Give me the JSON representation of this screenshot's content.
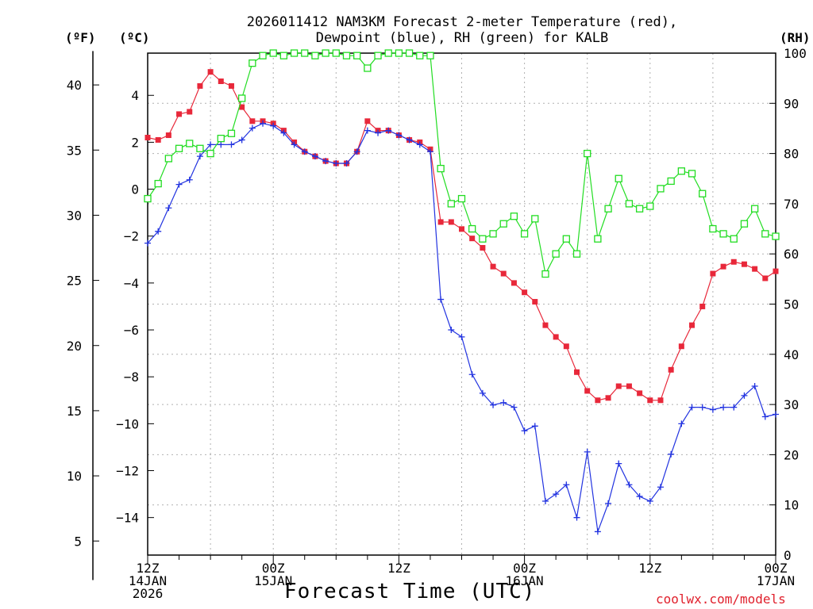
{
  "chart_data": {
    "type": "line",
    "title_line1": "2026011412 NAM3KM Forecast 2-meter Temperature (red),",
    "title_line2": "Dewpoint (blue), RH (green) for KALB",
    "left_outer_unit": "(ºF)",
    "left_inner_unit": "(ºC)",
    "right_unit": "(RH)",
    "xlabel": "Forecast Time (UTC)",
    "credit": "coolwx.com/models",
    "x_hours_range": [
      0,
      60
    ],
    "celsius_range": [
      -15.6,
      5.8
    ],
    "rh_range": [
      0,
      100
    ],
    "fahrenheit_ticks": [
      5,
      10,
      15,
      20,
      25,
      30,
      35,
      40
    ],
    "celsius_ticks": [
      -14,
      -12,
      -10,
      -8,
      -6,
      -4,
      -2,
      0,
      2,
      4
    ],
    "rh_ticks": [
      0,
      10,
      20,
      30,
      40,
      50,
      60,
      70,
      80,
      90,
      100
    ],
    "x_ticks": [
      {
        "hour": 0,
        "lines": [
          "12Z",
          "14JAN",
          "2026"
        ]
      },
      {
        "hour": 12,
        "lines": [
          "00Z",
          "15JAN"
        ]
      },
      {
        "hour": 24,
        "lines": [
          "12Z"
        ]
      },
      {
        "hour": 36,
        "lines": [
          "00Z",
          "16JAN"
        ]
      },
      {
        "hour": 48,
        "lines": [
          "12Z"
        ]
      },
      {
        "hour": 60,
        "lines": [
          "00Z",
          "17JAN"
        ]
      }
    ],
    "series": [
      {
        "name": "Temperature",
        "units": "C",
        "color": "#e8283a",
        "marker": "filled-square",
        "values": [
          [
            0,
            2.2
          ],
          [
            1,
            2.1
          ],
          [
            2,
            2.3
          ],
          [
            3,
            3.2
          ],
          [
            4,
            3.3
          ],
          [
            5,
            4.4
          ],
          [
            6,
            5.0
          ],
          [
            7,
            4.6
          ],
          [
            8,
            4.4
          ],
          [
            9,
            3.5
          ],
          [
            10,
            2.9
          ],
          [
            11,
            2.9
          ],
          [
            12,
            2.8
          ],
          [
            13,
            2.5
          ],
          [
            14,
            2.0
          ],
          [
            15,
            1.6
          ],
          [
            16,
            1.4
          ],
          [
            17,
            1.2
          ],
          [
            18,
            1.1
          ],
          [
            19,
            1.1
          ],
          [
            20,
            1.6
          ],
          [
            21,
            2.9
          ],
          [
            22,
            2.5
          ],
          [
            23,
            2.5
          ],
          [
            24,
            2.3
          ],
          [
            25,
            2.1
          ],
          [
            26,
            2.0
          ],
          [
            27,
            1.7
          ],
          [
            28,
            -1.4
          ],
          [
            29,
            -1.4
          ],
          [
            30,
            -1.7
          ],
          [
            31,
            -2.1
          ],
          [
            32,
            -2.5
          ],
          [
            33,
            -3.3
          ],
          [
            34,
            -3.6
          ],
          [
            35,
            -4.0
          ],
          [
            36,
            -4.4
          ],
          [
            37,
            -4.8
          ],
          [
            38,
            -5.8
          ],
          [
            39,
            -6.3
          ],
          [
            40,
            -6.7
          ],
          [
            41,
            -7.8
          ],
          [
            42,
            -8.6
          ],
          [
            43,
            -9.0
          ],
          [
            44,
            -8.9
          ],
          [
            45,
            -8.4
          ],
          [
            46,
            -8.4
          ],
          [
            47,
            -8.7
          ],
          [
            48,
            -9.0
          ],
          [
            49,
            -9.0
          ],
          [
            50,
            -7.7
          ],
          [
            51,
            -6.7
          ],
          [
            52,
            -5.8
          ],
          [
            53,
            -5.0
          ],
          [
            54,
            -3.6
          ],
          [
            55,
            -3.3
          ],
          [
            56,
            -3.1
          ],
          [
            57,
            -3.2
          ],
          [
            58,
            -3.4
          ],
          [
            59,
            -3.8
          ],
          [
            60,
            -3.5
          ]
        ]
      },
      {
        "name": "Dewpoint",
        "units": "C",
        "color": "#2233e0",
        "marker": "plus",
        "values": [
          [
            0,
            -2.3
          ],
          [
            1,
            -1.8
          ],
          [
            2,
            -0.8
          ],
          [
            3,
            0.2
          ],
          [
            4,
            0.4
          ],
          [
            5,
            1.4
          ],
          [
            6,
            1.9
          ],
          [
            7,
            1.9
          ],
          [
            8,
            1.9
          ],
          [
            9,
            2.1
          ],
          [
            10,
            2.6
          ],
          [
            11,
            2.8
          ],
          [
            12,
            2.7
          ],
          [
            13,
            2.4
          ],
          [
            14,
            1.9
          ],
          [
            15,
            1.6
          ],
          [
            16,
            1.4
          ],
          [
            17,
            1.2
          ],
          [
            18,
            1.1
          ],
          [
            19,
            1.1
          ],
          [
            20,
            1.6
          ],
          [
            21,
            2.5
          ],
          [
            22,
            2.4
          ],
          [
            23,
            2.5
          ],
          [
            24,
            2.3
          ],
          [
            25,
            2.1
          ],
          [
            26,
            1.9
          ],
          [
            27,
            1.6
          ],
          [
            28,
            -4.7
          ],
          [
            29,
            -6.0
          ],
          [
            30,
            -6.3
          ],
          [
            31,
            -7.9
          ],
          [
            32,
            -8.7
          ],
          [
            33,
            -9.2
          ],
          [
            34,
            -9.1
          ],
          [
            35,
            -9.3
          ],
          [
            36,
            -10.3
          ],
          [
            37,
            -10.1
          ],
          [
            38,
            -13.3
          ],
          [
            39,
            -13.0
          ],
          [
            40,
            -12.6
          ],
          [
            41,
            -14.0
          ],
          [
            42,
            -11.2
          ],
          [
            43,
            -14.6
          ],
          [
            44,
            -13.4
          ],
          [
            45,
            -11.7
          ],
          [
            46,
            -12.6
          ],
          [
            47,
            -13.1
          ],
          [
            48,
            -13.3
          ],
          [
            49,
            -12.7
          ],
          [
            50,
            -11.3
          ],
          [
            51,
            -10.0
          ],
          [
            52,
            -9.3
          ],
          [
            53,
            -9.3
          ],
          [
            54,
            -9.4
          ],
          [
            55,
            -9.3
          ],
          [
            56,
            -9.3
          ],
          [
            57,
            -8.8
          ],
          [
            58,
            -8.4
          ],
          [
            59,
            -9.7
          ],
          [
            60,
            -9.6
          ]
        ]
      },
      {
        "name": "RH",
        "units": "%",
        "color": "#22dd22",
        "marker": "open-square",
        "values": [
          [
            0,
            71
          ],
          [
            1,
            74
          ],
          [
            2,
            79
          ],
          [
            3,
            81
          ],
          [
            4,
            82
          ],
          [
            5,
            81
          ],
          [
            6,
            80
          ],
          [
            7,
            83
          ],
          [
            8,
            84
          ],
          [
            9,
            91
          ],
          [
            10,
            98
          ],
          [
            11,
            99.5
          ],
          [
            12,
            100
          ],
          [
            13,
            99.5
          ],
          [
            14,
            100
          ],
          [
            15,
            100
          ],
          [
            16,
            99.5
          ],
          [
            17,
            100
          ],
          [
            18,
            100
          ],
          [
            19,
            99.5
          ],
          [
            20,
            99.5
          ],
          [
            21,
            97
          ],
          [
            22,
            99.5
          ],
          [
            23,
            100
          ],
          [
            24,
            100
          ],
          [
            25,
            100
          ],
          [
            26,
            99.5
          ],
          [
            27,
            99.5
          ],
          [
            28,
            77
          ],
          [
            29,
            70
          ],
          [
            30,
            71
          ],
          [
            31,
            65
          ],
          [
            32,
            63
          ],
          [
            33,
            64
          ],
          [
            34,
            66
          ],
          [
            35,
            67.5
          ],
          [
            36,
            64
          ],
          [
            37,
            67
          ],
          [
            38,
            56
          ],
          [
            39,
            60
          ],
          [
            40,
            63
          ],
          [
            41,
            60
          ],
          [
            42,
            80
          ],
          [
            43,
            63
          ],
          [
            44,
            69
          ],
          [
            45,
            75
          ],
          [
            46,
            70
          ],
          [
            47,
            69
          ],
          [
            48,
            69.5
          ],
          [
            49,
            73
          ],
          [
            50,
            74.5
          ],
          [
            51,
            76.5
          ],
          [
            52,
            76
          ],
          [
            53,
            72
          ],
          [
            54,
            65
          ],
          [
            55,
            64
          ],
          [
            56,
            63
          ],
          [
            57,
            66
          ],
          [
            58,
            69
          ],
          [
            59,
            64
          ],
          [
            60,
            63.5
          ]
        ]
      }
    ]
  }
}
